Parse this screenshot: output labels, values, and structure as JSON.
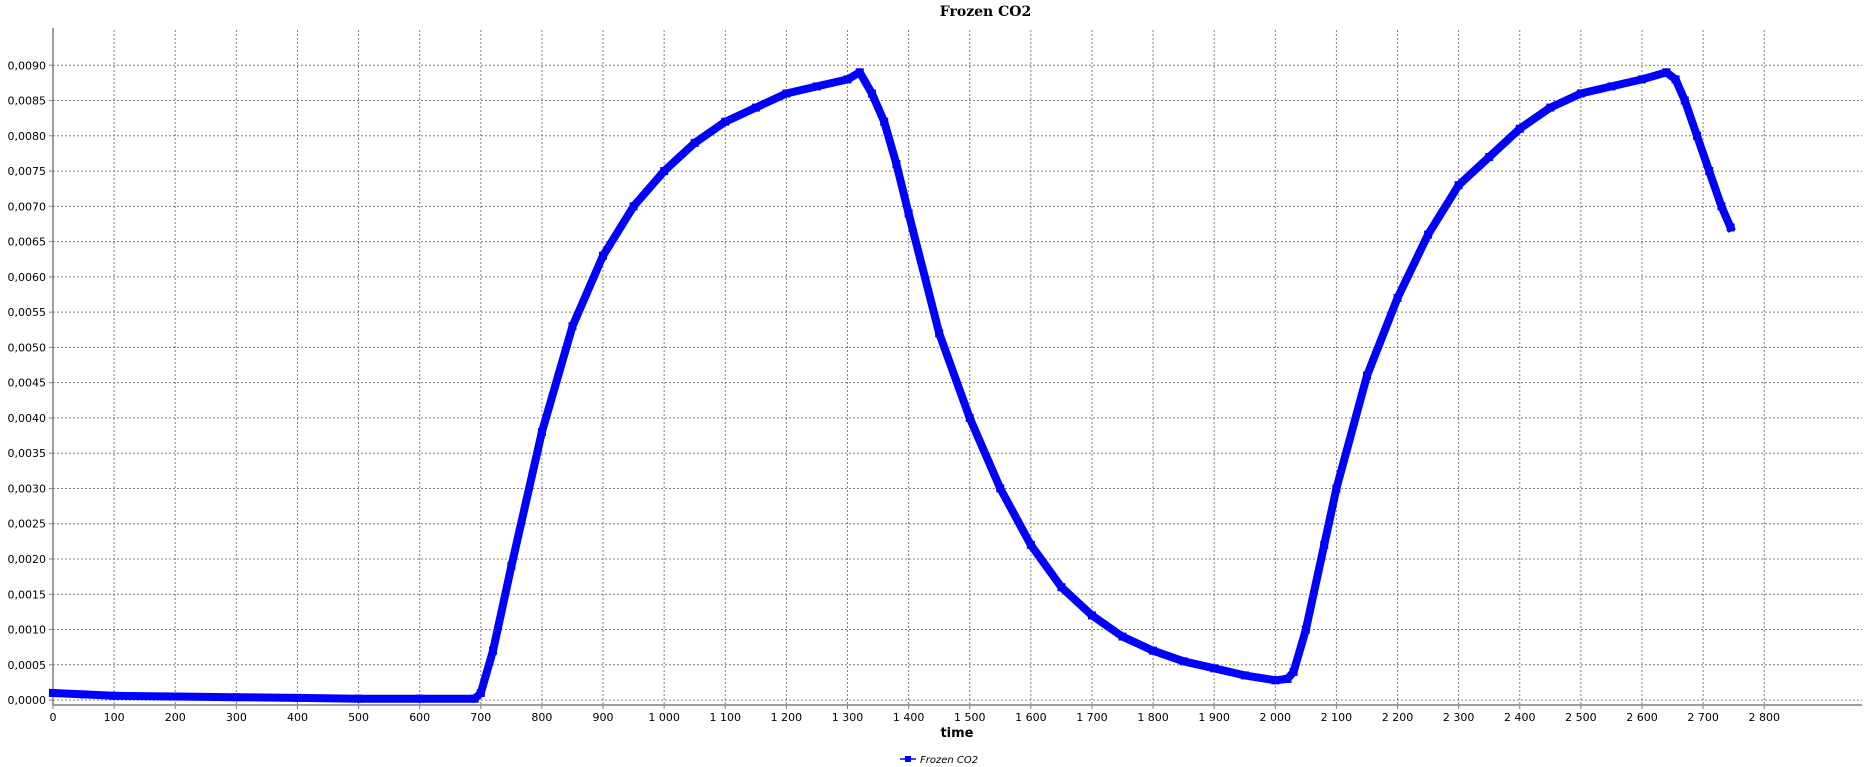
{
  "chart_data": {
    "type": "line",
    "title": "Frozen CO2",
    "xlabel": "time",
    "ylabel": "",
    "xlim": [
      0,
      2960
    ],
    "ylim": [
      -7e-05,
      0.0095
    ],
    "x_ticks": [
      0,
      100,
      200,
      300,
      400,
      500,
      600,
      700,
      800,
      900,
      1000,
      1100,
      1200,
      1300,
      1400,
      1500,
      1600,
      1700,
      1800,
      1900,
      2000,
      2100,
      2200,
      2300,
      2400,
      2500,
      2600,
      2700,
      2800
    ],
    "x_tick_labels": [
      "0",
      "100",
      "200",
      "300",
      "400",
      "500",
      "600",
      "700",
      "800",
      "900",
      "1 000",
      "1 100",
      "1 200",
      "1 300",
      "1 400",
      "1 500",
      "1 600",
      "1 700",
      "1 800",
      "1 900",
      "2 000",
      "2 100",
      "2 200",
      "2 300",
      "2 400",
      "2 500",
      "2 600",
      "2 700",
      "2 800"
    ],
    "y_ticks": [
      0,
      0.0005,
      0.001,
      0.0015,
      0.002,
      0.0025,
      0.003,
      0.0035,
      0.004,
      0.0045,
      0.005,
      0.0055,
      0.006,
      0.0065,
      0.007,
      0.0075,
      0.008,
      0.0085,
      0.009
    ],
    "y_tick_labels": [
      "0,0000",
      "0,0005",
      "0,0010",
      "0,0015",
      "0,0020",
      "0,0025",
      "0,0030",
      "0,0035",
      "0,0040",
      "0,0045",
      "0,0050",
      "0,0055",
      "0,0060",
      "0,0065",
      "0,0070",
      "0,0075",
      "0,0080",
      "0,0085",
      "0,0090"
    ],
    "grid": true,
    "legend_position": "bottom-center",
    "series": [
      {
        "name": "Frozen CO2",
        "color": "#0000ff",
        "marker": "square",
        "x": [
          0,
          50,
          100,
          200,
          300,
          400,
          500,
          600,
          690,
          700,
          720,
          750,
          800,
          850,
          900,
          950,
          1000,
          1050,
          1100,
          1150,
          1200,
          1250,
          1300,
          1320,
          1340,
          1360,
          1380,
          1400,
          1450,
          1500,
          1550,
          1600,
          1650,
          1700,
          1750,
          1800,
          1850,
          1900,
          1950,
          2000,
          2020,
          2030,
          2050,
          2080,
          2100,
          2150,
          2200,
          2250,
          2300,
          2350,
          2400,
          2450,
          2500,
          2550,
          2600,
          2640,
          2655,
          2670,
          2690,
          2710,
          2730,
          2745
        ],
        "y": [
          0.0001,
          8e-05,
          6e-05,
          5e-05,
          4e-05,
          3e-05,
          2e-05,
          2e-05,
          2e-05,
          0.0001,
          0.0007,
          0.0019,
          0.0038,
          0.0053,
          0.0063,
          0.007,
          0.0075,
          0.0079,
          0.0082,
          0.0084,
          0.0086,
          0.0087,
          0.0088,
          0.0089,
          0.0086,
          0.0082,
          0.0076,
          0.0069,
          0.0052,
          0.004,
          0.003,
          0.0022,
          0.0016,
          0.0012,
          0.0009,
          0.0007,
          0.00055,
          0.00045,
          0.00035,
          0.00028,
          0.0003,
          0.0004,
          0.001,
          0.0022,
          0.003,
          0.0046,
          0.0057,
          0.0066,
          0.0073,
          0.0077,
          0.0081,
          0.0084,
          0.0086,
          0.0087,
          0.0088,
          0.0089,
          0.0088,
          0.0085,
          0.008,
          0.0075,
          0.007,
          0.0067
        ]
      }
    ]
  }
}
